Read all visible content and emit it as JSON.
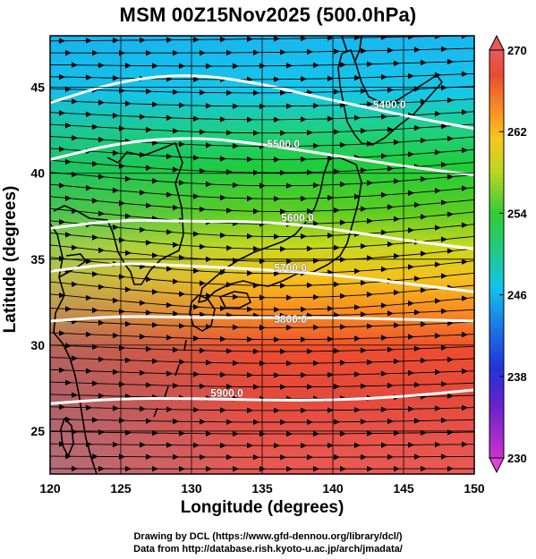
{
  "title": "MSM 00Z15Nov2025 (500.0hPa)",
  "credits": {
    "line1": "Drawing by DCL (https://www.gfd-dennou.org/library/dcl/)",
    "line2": "Data from http://database.rish.kyoto-u.ac.jp/arch/jmadata/"
  },
  "chart_data": {
    "type": "heatmap",
    "xlabel": "Longitude (degrees)",
    "ylabel": "Latitude  (degrees)",
    "xlim": [
      120,
      150
    ],
    "ylim": [
      22.5,
      48
    ],
    "x_ticks": [
      120,
      125,
      130,
      135,
      140,
      145,
      150
    ],
    "y_ticks": [
      25,
      30,
      35,
      40,
      45
    ],
    "grid": true,
    "colorbar": {
      "min": 230,
      "max": 270,
      "tick_values": [
        230,
        238,
        246,
        254,
        262,
        270
      ],
      "colors": [
        "#cc33cc",
        "#3322cc",
        "#1a66e6",
        "#11bbee",
        "#22cc55",
        "#66cc22",
        "#dddd22",
        "#ff9922",
        "#ee4433",
        "#e85a5a"
      ]
    },
    "height_contours": [
      {
        "label": "5400.0",
        "points": [
          [
            120,
            44.1
          ],
          [
            125,
            45.4
          ],
          [
            130,
            45.8
          ],
          [
            135,
            45.2
          ],
          [
            138,
            44.6
          ],
          [
            142,
            43.9
          ],
          [
            146,
            43.2
          ],
          [
            150,
            42.6
          ]
        ]
      },
      {
        "label": "5500.0",
        "points": [
          [
            120,
            40.8
          ],
          [
            125,
            41.8
          ],
          [
            130,
            42.1
          ],
          [
            134,
            41.8
          ],
          [
            138,
            41.3
          ],
          [
            142,
            40.8
          ],
          [
            146,
            40.3
          ],
          [
            150,
            39.9
          ]
        ]
      },
      {
        "label": "5600.0",
        "points": [
          [
            120,
            36.8
          ],
          [
            125,
            37.3
          ],
          [
            130,
            37.2
          ],
          [
            134,
            37.2
          ],
          [
            138,
            37.0
          ],
          [
            142,
            36.5
          ],
          [
            146,
            36.0
          ],
          [
            150,
            35.6
          ]
        ]
      },
      {
        "label": "5700.0",
        "points": [
          [
            120,
            34.3
          ],
          [
            125,
            34.8
          ],
          [
            130,
            34.6
          ],
          [
            135,
            34.4
          ],
          [
            140,
            34.1
          ],
          [
            145,
            33.6
          ],
          [
            150,
            33.1
          ]
        ]
      },
      {
        "label": "5800.0",
        "points": [
          [
            120,
            31.4
          ],
          [
            125,
            31.7
          ],
          [
            130,
            31.6
          ],
          [
            135,
            31.6
          ],
          [
            140,
            31.6
          ],
          [
            145,
            31.5
          ],
          [
            150,
            31.4
          ]
        ]
      },
      {
        "label": "5900.0",
        "points": [
          [
            120,
            26.6
          ],
          [
            125,
            26.9
          ],
          [
            130,
            26.9
          ],
          [
            135,
            26.8
          ],
          [
            140,
            26.8
          ],
          [
            145,
            27.0
          ],
          [
            150,
            27.4
          ]
        ]
      }
    ],
    "contour_labels": [
      {
        "text": "5400.0",
        "lon": 144.0,
        "lat": 44.0
      },
      {
        "text": "5500.0",
        "lon": 136.5,
        "lat": 41.7
      },
      {
        "text": "5600.0",
        "lon": 137.5,
        "lat": 37.4
      },
      {
        "text": "5700.0",
        "lon": 137.0,
        "lat": 34.5
      },
      {
        "text": "5800.0",
        "lon": 137.0,
        "lat": 31.5
      },
      {
        "text": "5900.0",
        "lon": 132.5,
        "lat": 27.2
      }
    ]
  }
}
